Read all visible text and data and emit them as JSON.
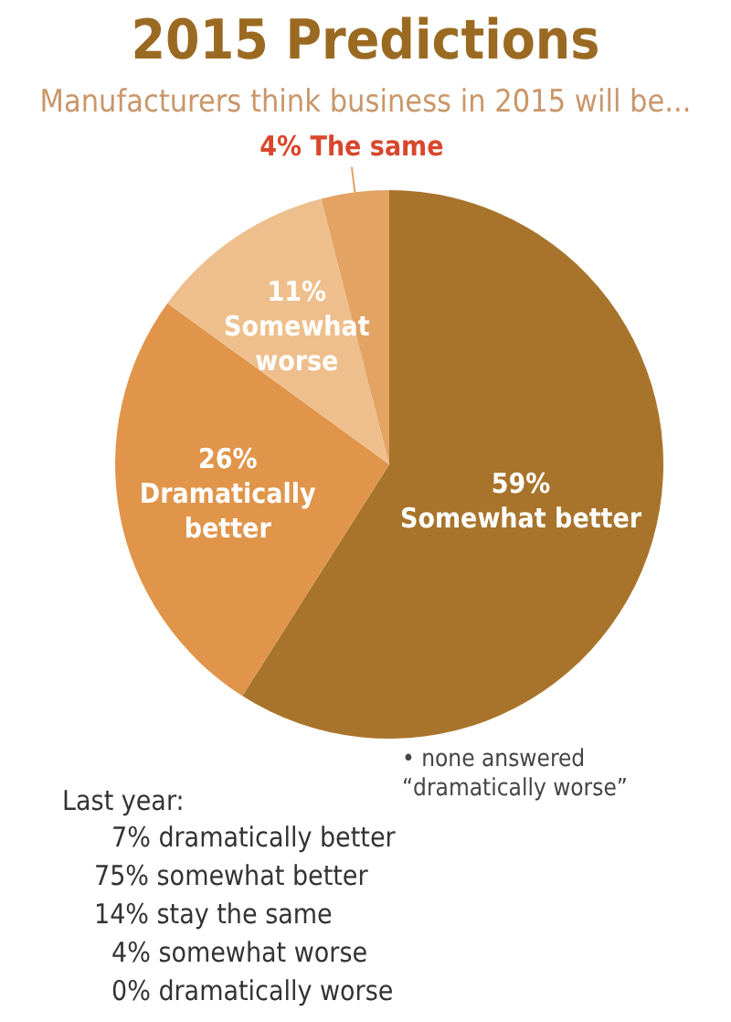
{
  "chart_data": {
    "type": "pie",
    "title": "2015 Predictions",
    "subtitle": "Manufacturers think business in 2015 will be...",
    "categories": [
      "Somewhat better",
      "Dramatically better",
      "Somewhat worse",
      "The same"
    ],
    "values": [
      59,
      26,
      11,
      4
    ],
    "value_labels": [
      "59%",
      "26%",
      "11%",
      "4%"
    ],
    "colors": [
      "#a8742c",
      "#e0954a",
      "#eebf8c",
      "#e2a363"
    ],
    "legend": false,
    "annotations": [
      "• none answered “dramatically worse”",
      "Last year:",
      "7% dramatically better",
      "75% somewhat better",
      "14% stay the same",
      "4% somewhat worse",
      "0% dramatically worse"
    ]
  }
}
